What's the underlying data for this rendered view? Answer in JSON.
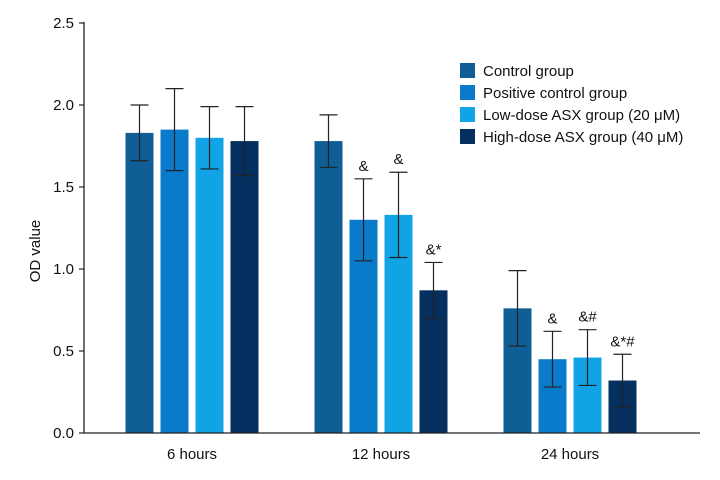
{
  "chart_data": {
    "type": "bar",
    "title": "",
    "xlabel": "",
    "ylabel": "OD value",
    "ylim": [
      0,
      2.5
    ],
    "yticks": [
      "0.0",
      "0.5",
      "1.0",
      "1.5",
      "2.0",
      "2.5"
    ],
    "categories": [
      "6 hours",
      "12 hours",
      "24 hours"
    ],
    "legend_position": "top-right",
    "series": [
      {
        "name": "Control group",
        "color": "#0f5f96",
        "values": [
          1.83,
          1.78,
          0.76
        ],
        "errors": [
          0.17,
          0.16,
          0.23
        ],
        "annotations": [
          "",
          "",
          ""
        ]
      },
      {
        "name": "Positive control group",
        "color": "#0a7acb",
        "values": [
          1.85,
          1.3,
          0.45
        ],
        "errors": [
          0.25,
          0.25,
          0.17
        ],
        "annotations": [
          "",
          "&",
          "&"
        ]
      },
      {
        "name": "Low-dose ASX group (20 μM)",
        "color": "#10a3e6",
        "values": [
          1.8,
          1.33,
          0.46
        ],
        "errors": [
          0.19,
          0.26,
          0.17
        ],
        "annotations": [
          "",
          "&",
          "&#"
        ]
      },
      {
        "name": "High-dose ASX group (40 μM)",
        "color": "#052f5f",
        "values": [
          1.78,
          0.87,
          0.32
        ],
        "errors": [
          0.21,
          0.17,
          0.16
        ],
        "annotations": [
          "",
          "&*",
          "&*#"
        ]
      }
    ]
  }
}
